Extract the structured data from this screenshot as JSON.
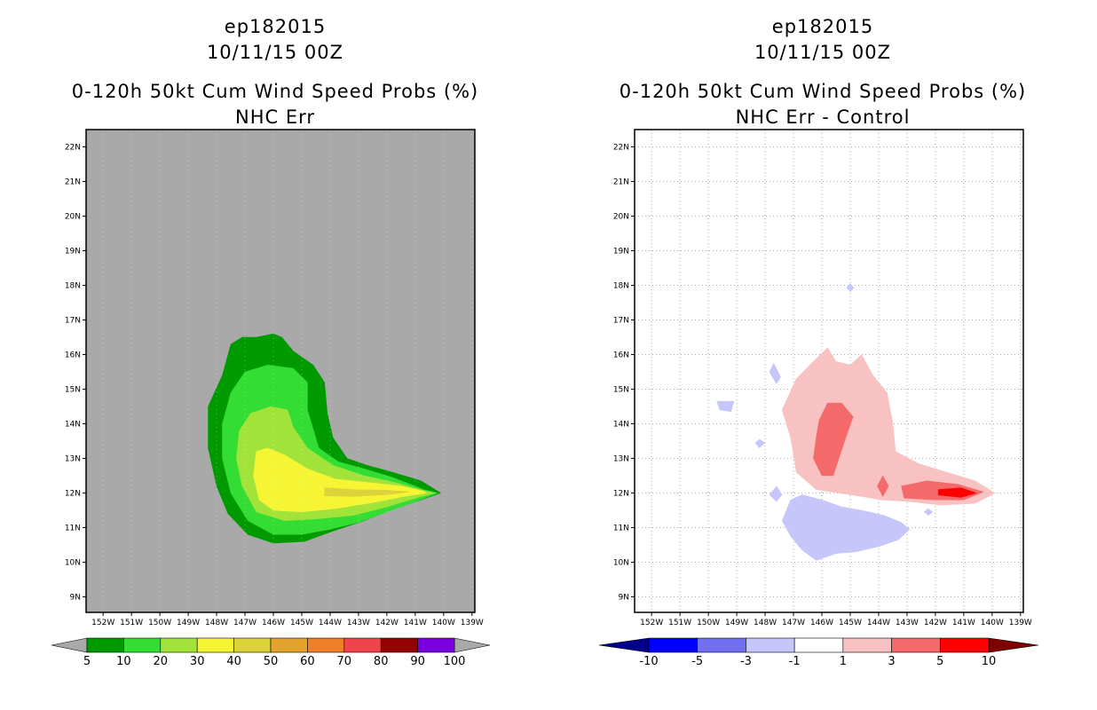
{
  "panels": [
    {
      "storm": "ep182015",
      "datetime": "10/11/15 00Z",
      "title": "0-120h 50kt Cum Wind Speed Probs (%)",
      "subtitle": "NHC Err"
    },
    {
      "storm": "ep182015",
      "datetime": "10/11/15 00Z",
      "title": "0-120h 50kt Cum Wind Speed Probs (%)",
      "subtitle": "NHC Err - Control"
    }
  ],
  "chart_data": [
    {
      "type": "heatmap",
      "title": "0-120h 50kt Cum Wind Speed Probs (%)",
      "subtitle": "NHC Err",
      "x_ticks": [
        "152W",
        "151W",
        "150W",
        "149W",
        "148W",
        "147W",
        "146W",
        "145W",
        "144W",
        "143W",
        "142W",
        "141W",
        "140W",
        "139W"
      ],
      "y_ticks": [
        "9N",
        "10N",
        "11N",
        "12N",
        "13N",
        "14N",
        "15N",
        "16N",
        "17N",
        "18N",
        "19N",
        "20N",
        "21N",
        "22N"
      ],
      "xlim": [
        -152.6,
        -138.9
      ],
      "ylim": [
        8.55,
        22.5
      ],
      "background_color": "#a9a9a9",
      "levels": [
        5,
        10,
        20,
        30,
        40,
        50,
        60,
        70,
        80,
        90,
        100
      ],
      "colors": [
        "#009900",
        "#33dd33",
        "#a2e33a",
        "#f5f534",
        "#dcd23a",
        "#e2a42d",
        "#ee802c",
        "#f0434b",
        "#950000",
        "#7b00e0"
      ],
      "contours": [
        {
          "level": 5,
          "color": "#009900",
          "points": [
            [
              -148.3,
              14.5
            ],
            [
              -147.8,
              15.4
            ],
            [
              -147.5,
              16.3
            ],
            [
              -147.1,
              16.5
            ],
            [
              -146.6,
              16.5
            ],
            [
              -146.0,
              16.6
            ],
            [
              -145.7,
              16.5
            ],
            [
              -145.3,
              16.1
            ],
            [
              -144.6,
              15.7
            ],
            [
              -144.2,
              15.2
            ],
            [
              -144.1,
              14.3
            ],
            [
              -143.9,
              13.6
            ],
            [
              -143.4,
              13.0
            ],
            [
              -142.7,
              12.8
            ],
            [
              -141.8,
              12.6
            ],
            [
              -140.8,
              12.35
            ],
            [
              -140.1,
              12.0
            ],
            [
              -140.8,
              11.8
            ],
            [
              -141.9,
              11.5
            ],
            [
              -142.8,
              11.2
            ],
            [
              -143.9,
              10.9
            ],
            [
              -144.9,
              10.6
            ],
            [
              -146.0,
              10.55
            ],
            [
              -146.9,
              10.8
            ],
            [
              -147.6,
              11.4
            ],
            [
              -148.0,
              12.2
            ],
            [
              -148.3,
              13.3
            ]
          ]
        },
        {
          "level": 10,
          "color": "#33dd33",
          "points": [
            [
              -147.8,
              14.0
            ],
            [
              -147.5,
              14.9
            ],
            [
              -147.0,
              15.5
            ],
            [
              -146.2,
              15.7
            ],
            [
              -145.3,
              15.6
            ],
            [
              -144.8,
              15.2
            ],
            [
              -144.8,
              14.4
            ],
            [
              -144.4,
              13.3
            ],
            [
              -143.7,
              12.9
            ],
            [
              -142.8,
              12.7
            ],
            [
              -141.8,
              12.45
            ],
            [
              -140.7,
              12.1
            ],
            [
              -140.2,
              12.0
            ],
            [
              -141.0,
              11.75
            ],
            [
              -142.0,
              11.45
            ],
            [
              -143.0,
              11.15
            ],
            [
              -144.0,
              10.95
            ],
            [
              -145.0,
              10.8
            ],
            [
              -146.0,
              10.8
            ],
            [
              -146.9,
              11.2
            ],
            [
              -147.5,
              12.0
            ],
            [
              -147.8,
              13.0
            ]
          ]
        },
        {
          "level": 20,
          "color": "#a2e33a",
          "points": [
            [
              -147.2,
              13.8
            ],
            [
              -146.8,
              14.3
            ],
            [
              -146.1,
              14.5
            ],
            [
              -145.5,
              14.4
            ],
            [
              -145.3,
              13.9
            ],
            [
              -144.8,
              13.3
            ],
            [
              -143.9,
              12.8
            ],
            [
              -142.8,
              12.5
            ],
            [
              -141.7,
              12.3
            ],
            [
              -140.6,
              12.05
            ],
            [
              -140.3,
              12.0
            ],
            [
              -141.0,
              11.85
            ],
            [
              -142.0,
              11.6
            ],
            [
              -143.2,
              11.35
            ],
            [
              -144.5,
              11.25
            ],
            [
              -145.6,
              11.2
            ],
            [
              -146.6,
              11.45
            ],
            [
              -147.1,
              12.2
            ],
            [
              -147.3,
              13.0
            ]
          ]
        },
        {
          "level": 30,
          "color": "#f5f534",
          "points": [
            [
              -146.6,
              13.2
            ],
            [
              -146.2,
              13.3
            ],
            [
              -145.6,
              13.1
            ],
            [
              -144.8,
              12.7
            ],
            [
              -143.8,
              12.4
            ],
            [
              -142.6,
              12.3
            ],
            [
              -141.5,
              12.2
            ],
            [
              -140.7,
              12.05
            ],
            [
              -140.6,
              12.0
            ],
            [
              -141.4,
              11.9
            ],
            [
              -142.5,
              11.72
            ],
            [
              -143.8,
              11.55
            ],
            [
              -145.0,
              11.45
            ],
            [
              -146.0,
              11.5
            ],
            [
              -146.5,
              11.8
            ],
            [
              -146.7,
              12.5
            ]
          ]
        },
        {
          "level": 40,
          "color": "#dcd23a",
          "points": [
            [
              -144.2,
              12.15
            ],
            [
              -143.2,
              12.1
            ],
            [
              -142.0,
              12.08
            ],
            [
              -141.2,
              12.03
            ],
            [
              -142.0,
              11.95
            ],
            [
              -143.2,
              11.9
            ],
            [
              -144.2,
              11.92
            ]
          ]
        }
      ]
    },
    {
      "type": "heatmap",
      "title": "0-120h 50kt Cum Wind Speed Probs (%)",
      "subtitle": "NHC Err - Control",
      "x_ticks": [
        "152W",
        "151W",
        "150W",
        "149W",
        "148W",
        "147W",
        "146W",
        "145W",
        "144W",
        "143W",
        "142W",
        "141W",
        "140W",
        "139W"
      ],
      "y_ticks": [
        "9N",
        "10N",
        "11N",
        "12N",
        "13N",
        "14N",
        "15N",
        "16N",
        "17N",
        "18N",
        "19N",
        "20N",
        "21N",
        "22N"
      ],
      "xlim": [
        -152.6,
        -138.9
      ],
      "ylim": [
        8.55,
        22.5
      ],
      "background_color": "#ffffff",
      "grid": true,
      "levels": [
        -10,
        -5,
        -3,
        -1,
        1,
        3,
        5,
        10
      ],
      "colors": [
        "#00008b",
        "#0000ff",
        "#7070f0",
        "#c6c6fa",
        "#ffffff",
        "#f9c2c2",
        "#f46a6a",
        "#ff0000",
        "#800000"
      ],
      "contours": [
        {
          "level": 1,
          "color": "#f9c2c2",
          "points": [
            [
              -147.4,
              14.4
            ],
            [
              -146.9,
              15.3
            ],
            [
              -146.3,
              15.8
            ],
            [
              -145.8,
              16.2
            ],
            [
              -145.5,
              15.8
            ],
            [
              -145.0,
              15.7
            ],
            [
              -144.6,
              16.0
            ],
            [
              -144.2,
              15.4
            ],
            [
              -143.7,
              14.9
            ],
            [
              -143.5,
              14.0
            ],
            [
              -143.4,
              13.2
            ],
            [
              -142.6,
              12.85
            ],
            [
              -141.6,
              12.6
            ],
            [
              -140.6,
              12.35
            ],
            [
              -139.9,
              12.0
            ],
            [
              -140.6,
              11.7
            ],
            [
              -141.8,
              11.65
            ],
            [
              -142.9,
              11.75
            ],
            [
              -143.9,
              11.8
            ],
            [
              -144.6,
              11.9
            ],
            [
              -145.4,
              12.0
            ],
            [
              -146.2,
              12.1
            ],
            [
              -146.9,
              12.6
            ],
            [
              -147.1,
              13.6
            ]
          ]
        },
        {
          "level": 3,
          "color": "#f46a6a",
          "points": [
            [
              -146.1,
              14.1
            ],
            [
              -145.8,
              14.6
            ],
            [
              -145.3,
              14.6
            ],
            [
              -144.9,
              14.2
            ],
            [
              -145.2,
              13.5
            ],
            [
              -145.4,
              13.0
            ],
            [
              -145.6,
              12.5
            ],
            [
              -146.0,
              12.5
            ],
            [
              -146.3,
              13.0
            ],
            [
              -146.2,
              13.6
            ]
          ]
        },
        {
          "level": 3,
          "color": "#f46a6a",
          "points": [
            [
              -143.2,
              12.2
            ],
            [
              -142.3,
              12.35
            ],
            [
              -141.2,
              12.25
            ],
            [
              -140.3,
              12.03
            ],
            [
              -141.0,
              11.8
            ],
            [
              -142.0,
              11.8
            ],
            [
              -143.1,
              11.85
            ]
          ]
        },
        {
          "level": 3,
          "color": "#f46a6a",
          "points": [
            [
              -143.85,
              12.5
            ],
            [
              -143.65,
              12.2
            ],
            [
              -143.85,
              11.9
            ],
            [
              -144.05,
              12.2
            ]
          ]
        },
        {
          "level": 5,
          "color": "#ff0000",
          "points": [
            [
              -141.9,
              12.1
            ],
            [
              -141.1,
              12.15
            ],
            [
              -140.55,
              12.0
            ],
            [
              -141.1,
              11.87
            ],
            [
              -141.9,
              11.94
            ]
          ]
        },
        {
          "level": -1,
          "color": "#c6c6fa",
          "points": [
            [
              -147.4,
              11.2
            ],
            [
              -147.1,
              11.8
            ],
            [
              -146.7,
              11.95
            ],
            [
              -146.0,
              11.8
            ],
            [
              -145.3,
              11.6
            ],
            [
              -144.6,
              11.5
            ],
            [
              -143.8,
              11.35
            ],
            [
              -143.2,
              11.15
            ],
            [
              -142.9,
              10.95
            ],
            [
              -143.3,
              10.65
            ],
            [
              -144.0,
              10.45
            ],
            [
              -144.8,
              10.3
            ],
            [
              -145.5,
              10.25
            ],
            [
              -146.2,
              10.05
            ],
            [
              -146.7,
              10.35
            ],
            [
              -147.1,
              10.75
            ]
          ]
        },
        {
          "level": -1,
          "color": "#c6c6fa",
          "points": [
            [
              -145.0,
              18.05
            ],
            [
              -144.87,
              17.93
            ],
            [
              -145.0,
              17.81
            ],
            [
              -145.13,
              17.93
            ]
          ]
        },
        {
          "level": -1,
          "color": "#c6c6fa",
          "points": [
            [
              -147.7,
              15.75
            ],
            [
              -147.45,
              15.35
            ],
            [
              -147.6,
              15.15
            ],
            [
              -147.85,
              15.5
            ]
          ]
        },
        {
          "level": -1,
          "color": "#c6c6fa",
          "points": [
            [
              -149.7,
              14.65
            ],
            [
              -149.1,
              14.65
            ],
            [
              -149.2,
              14.35
            ],
            [
              -149.6,
              14.4
            ]
          ]
        },
        {
          "level": -1,
          "color": "#c6c6fa",
          "points": [
            [
              -148.2,
              13.55
            ],
            [
              -148.0,
              13.45
            ],
            [
              -148.2,
              13.3
            ],
            [
              -148.35,
              13.45
            ]
          ]
        },
        {
          "level": -1,
          "color": "#c6c6fa",
          "points": [
            [
              -147.6,
              12.2
            ],
            [
              -147.4,
              11.95
            ],
            [
              -147.6,
              11.75
            ],
            [
              -147.85,
              11.95
            ]
          ]
        },
        {
          "level": -1,
          "color": "#c6c6fa",
          "points": [
            [
              -142.25,
              11.55
            ],
            [
              -142.1,
              11.45
            ],
            [
              -142.25,
              11.35
            ],
            [
              -142.4,
              11.45
            ]
          ]
        }
      ]
    }
  ],
  "colorbars": [
    {
      "labels": [
        "5",
        "10",
        "20",
        "30",
        "40",
        "50",
        "60",
        "70",
        "80",
        "90",
        "100"
      ],
      "colors": [
        "#009900",
        "#33dd33",
        "#a2e33a",
        "#f5f534",
        "#dcd23a",
        "#e2a42d",
        "#ee802c",
        "#f0434b",
        "#950000",
        "#7b00e0"
      ],
      "low_end": "#a9a9a9",
      "high_end": "#a9a9a9"
    },
    {
      "labels": [
        "-10",
        "-5",
        "-3",
        "-1",
        "1",
        "3",
        "5",
        "10"
      ],
      "colors": [
        "#0000ff",
        "#7070f0",
        "#c6c6fa",
        "#ffffff",
        "#f9c2c2",
        "#f46a6a",
        "#ff0000"
      ],
      "low_end": "#00008b",
      "high_end": "#800000"
    }
  ]
}
